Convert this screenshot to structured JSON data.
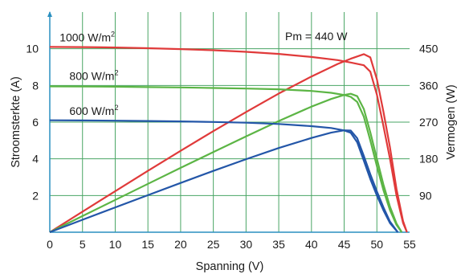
{
  "chart_data": {
    "type": "line",
    "title": "",
    "xlabel": "Spanning (V)",
    "ylabel": "Stroomsterkte (A)",
    "y2label": "Vermogen (W)",
    "xlim": [
      0,
      55
    ],
    "ylim": [
      0,
      12
    ],
    "y2lim": [
      0,
      540
    ],
    "grid": true,
    "x_ticks": [
      "0",
      "5",
      "10",
      "15",
      "20",
      "25",
      "30",
      "35",
      "40",
      "45",
      "50",
      "55"
    ],
    "y_ticks": [
      "2",
      "4",
      "6",
      "8",
      "10"
    ],
    "y2_ticks": [
      "90",
      "180",
      "270",
      "360",
      "450"
    ],
    "annotation": "Pm = 440 W",
    "series": [
      {
        "name": "1000 W/m²",
        "label_main": "1000 W/m",
        "label_sup": "2",
        "color": "#e03a3a",
        "iv": [
          [
            0,
            10.1
          ],
          [
            5,
            10.09
          ],
          [
            10,
            10.07
          ],
          [
            15,
            10.03
          ],
          [
            20,
            9.98
          ],
          [
            25,
            9.92
          ],
          [
            30,
            9.83
          ],
          [
            35,
            9.72
          ],
          [
            40,
            9.55
          ],
          [
            44,
            9.38
          ],
          [
            46,
            9.25
          ],
          [
            48,
            9.1
          ],
          [
            49,
            8.75
          ],
          [
            50,
            7.5
          ],
          [
            51,
            5.8
          ],
          [
            52,
            4.0
          ],
          [
            53,
            2.0
          ],
          [
            54,
            0.5
          ],
          [
            54.6,
            0
          ]
        ],
        "power": [
          [
            0,
            0
          ],
          [
            5,
            50.5
          ],
          [
            10,
            100.7
          ],
          [
            15,
            150.5
          ],
          [
            20,
            199.6
          ],
          [
            25,
            248
          ],
          [
            30,
            294.9
          ],
          [
            35,
            340.2
          ],
          [
            40,
            382
          ],
          [
            44,
            412.7
          ],
          [
            46,
            425.5
          ],
          [
            48,
            436.8
          ],
          [
            49,
            428.8
          ],
          [
            50,
            375
          ],
          [
            51,
            295.8
          ],
          [
            52,
            208
          ],
          [
            53,
            106
          ],
          [
            54,
            27
          ],
          [
            54.6,
            0
          ]
        ]
      },
      {
        "name": "800 W/m²",
        "label_main": "800 W/m",
        "label_sup": "2",
        "color": "#5cb545",
        "iv": [
          [
            0,
            7.95
          ],
          [
            5,
            7.94
          ],
          [
            10,
            7.93
          ],
          [
            15,
            7.91
          ],
          [
            20,
            7.89
          ],
          [
            25,
            7.86
          ],
          [
            30,
            7.83
          ],
          [
            35,
            7.79
          ],
          [
            40,
            7.7
          ],
          [
            43,
            7.6
          ],
          [
            45,
            7.48
          ],
          [
            46,
            7.38
          ],
          [
            47,
            7.1
          ],
          [
            48,
            6.3
          ],
          [
            49,
            5.0
          ],
          [
            50,
            3.6
          ],
          [
            51,
            2.3
          ],
          [
            52,
            1.2
          ],
          [
            53,
            0.4
          ],
          [
            53.8,
            0
          ]
        ],
        "power": [
          [
            0,
            0
          ],
          [
            5,
            39.7
          ],
          [
            10,
            79.3
          ],
          [
            15,
            118.7
          ],
          [
            20,
            157.8
          ],
          [
            25,
            196.5
          ],
          [
            30,
            234.9
          ],
          [
            35,
            272.7
          ],
          [
            40,
            308
          ],
          [
            43,
            326.8
          ],
          [
            45,
            336.6
          ],
          [
            46,
            339.5
          ],
          [
            47,
            333.7
          ],
          [
            48,
            302.4
          ],
          [
            49,
            245
          ],
          [
            50,
            180
          ],
          [
            51,
            117.3
          ],
          [
            52,
            62.4
          ],
          [
            53,
            21.2
          ],
          [
            53.8,
            0
          ]
        ]
      },
      {
        "name": "600 W/m²",
        "label_main": "600 W/m",
        "label_sup": "2",
        "color": "#2356a8",
        "iv": [
          [
            0,
            6.1
          ],
          [
            5,
            6.09
          ],
          [
            10,
            6.08
          ],
          [
            15,
            6.06
          ],
          [
            20,
            6.04
          ],
          [
            25,
            6.01
          ],
          [
            30,
            5.97
          ],
          [
            35,
            5.9
          ],
          [
            40,
            5.78
          ],
          [
            43,
            5.68
          ],
          [
            45,
            5.55
          ],
          [
            46,
            5.42
          ],
          [
            47,
            4.9
          ],
          [
            48,
            3.9
          ],
          [
            49,
            2.9
          ],
          [
            50,
            2.0
          ],
          [
            51,
            1.2
          ],
          [
            52,
            0.5
          ],
          [
            53.2,
            0
          ]
        ],
        "power": [
          [
            0,
            0
          ],
          [
            5,
            30.5
          ],
          [
            10,
            60.8
          ],
          [
            15,
            90.9
          ],
          [
            20,
            120.8
          ],
          [
            25,
            150.3
          ],
          [
            30,
            179.1
          ],
          [
            35,
            206.5
          ],
          [
            40,
            231.2
          ],
          [
            43,
            244.2
          ],
          [
            45,
            249.8
          ],
          [
            46,
            249.3
          ],
          [
            47,
            230.3
          ],
          [
            48,
            187.2
          ],
          [
            49,
            142.1
          ],
          [
            50,
            100
          ],
          [
            51,
            61.2
          ],
          [
            52,
            26
          ],
          [
            53.2,
            0
          ]
        ]
      }
    ]
  }
}
